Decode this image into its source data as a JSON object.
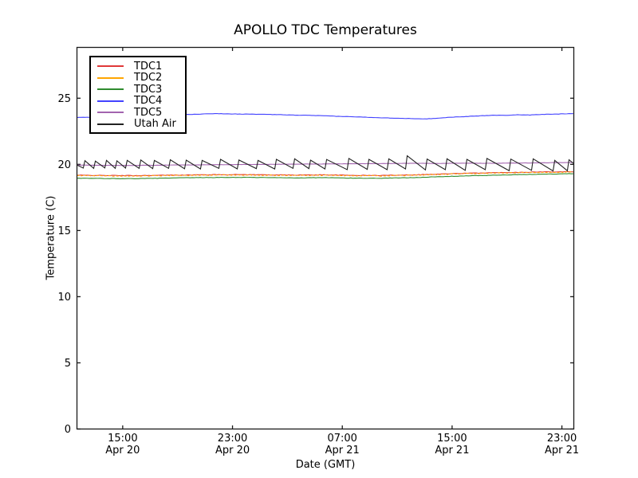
{
  "chart_data": {
    "type": "line",
    "title": "APOLLO TDC Temperatures",
    "xlabel": "Date (GMT)",
    "ylabel": "Temperature (C)",
    "grid": false,
    "legend_position": "upper left",
    "xlim_hours": [
      0,
      36.2
    ],
    "ylim": [
      0,
      28.84
    ],
    "y_ticks": [
      {
        "value": 0,
        "label": "0"
      },
      {
        "value": 5,
        "label": "5"
      },
      {
        "value": 10,
        "label": "10"
      },
      {
        "value": 15,
        "label": "15"
      },
      {
        "value": 20,
        "label": "20"
      },
      {
        "value": 25,
        "label": "25"
      }
    ],
    "x_ticks": [
      {
        "t": 3.333,
        "time": "15:00",
        "date": "Apr 20"
      },
      {
        "t": 11.333,
        "time": "23:00",
        "date": "Apr 20"
      },
      {
        "t": 19.333,
        "time": "07:00",
        "date": "Apr 21"
      },
      {
        "t": 27.333,
        "time": "15:00",
        "date": "Apr 21"
      },
      {
        "t": 35.333,
        "time": "23:00",
        "date": "Apr 21"
      }
    ],
    "series": [
      {
        "id": "tdc1",
        "label": "TDC1",
        "color": "#e03838",
        "noise": 0.02,
        "sample_step": 0.15,
        "points": [
          [
            0,
            19.18
          ],
          [
            2,
            19.16
          ],
          [
            4,
            19.15
          ],
          [
            6,
            19.17
          ],
          [
            8,
            19.2
          ],
          [
            10,
            19.22
          ],
          [
            12,
            19.23
          ],
          [
            14,
            19.21
          ],
          [
            16,
            19.19
          ],
          [
            18,
            19.21
          ],
          [
            20,
            19.17
          ],
          [
            22,
            19.16
          ],
          [
            24,
            19.2
          ],
          [
            26,
            19.25
          ],
          [
            28,
            19.32
          ],
          [
            30,
            19.36
          ],
          [
            32,
            19.4
          ],
          [
            34,
            19.43
          ],
          [
            36.2,
            19.45
          ]
        ]
      },
      {
        "id": "tdc2",
        "label": "TDC2",
        "color": "#ffa500",
        "noise": 0.03,
        "sample_step": 0.15,
        "dash": "3 2",
        "points": [
          [
            0,
            19.15
          ],
          [
            2,
            19.13
          ],
          [
            4,
            19.12
          ],
          [
            6,
            19.14
          ],
          [
            8,
            19.17
          ],
          [
            10,
            19.19
          ],
          [
            12,
            19.2
          ],
          [
            14,
            19.18
          ],
          [
            16,
            19.16
          ],
          [
            18,
            19.18
          ],
          [
            20,
            19.14
          ],
          [
            22,
            19.13
          ],
          [
            24,
            19.17
          ],
          [
            26,
            19.22
          ],
          [
            28,
            19.29
          ],
          [
            30,
            19.33
          ],
          [
            32,
            19.37
          ],
          [
            34,
            19.4
          ],
          [
            36.2,
            19.42
          ]
        ]
      },
      {
        "id": "tdc3",
        "label": "TDC3",
        "color": "#2e8b2e",
        "noise": 0.015,
        "sample_step": 0.15,
        "points": [
          [
            0,
            18.95
          ],
          [
            2,
            18.93
          ],
          [
            4,
            18.92
          ],
          [
            6,
            18.95
          ],
          [
            8,
            18.99
          ],
          [
            10,
            19.01
          ],
          [
            12,
            19.02
          ],
          [
            14,
            19.0
          ],
          [
            16,
            18.98
          ],
          [
            18,
            19.0
          ],
          [
            20,
            18.96
          ],
          [
            22,
            18.95
          ],
          [
            24,
            18.99
          ],
          [
            26,
            19.05
          ],
          [
            28,
            19.12
          ],
          [
            30,
            19.17
          ],
          [
            32,
            19.22
          ],
          [
            34,
            19.26
          ],
          [
            36.2,
            19.3
          ]
        ]
      },
      {
        "id": "tdc4",
        "label": "TDC4",
        "color": "#4242ff",
        "noise": 0.012,
        "sample_step": 0.15,
        "points": [
          [
            0,
            23.55
          ],
          [
            1,
            23.57
          ],
          [
            2,
            23.58
          ],
          [
            3,
            23.6
          ],
          [
            4,
            23.62
          ],
          [
            5,
            23.65
          ],
          [
            6,
            23.7
          ],
          [
            7,
            23.74
          ],
          [
            8,
            23.77
          ],
          [
            9,
            23.8
          ],
          [
            10,
            23.84
          ],
          [
            11,
            23.82
          ],
          [
            12,
            23.8
          ],
          [
            13,
            23.79
          ],
          [
            14,
            23.77
          ],
          [
            15,
            23.75
          ],
          [
            16,
            23.72
          ],
          [
            17,
            23.7
          ],
          [
            18,
            23.67
          ],
          [
            19,
            23.63
          ],
          [
            20,
            23.6
          ],
          [
            21,
            23.57
          ],
          [
            22,
            23.53
          ],
          [
            23,
            23.5
          ],
          [
            24,
            23.47
          ],
          [
            25,
            23.45
          ],
          [
            25.5,
            23.44
          ],
          [
            26,
            23.47
          ],
          [
            27,
            23.55
          ],
          [
            28,
            23.6
          ],
          [
            29,
            23.65
          ],
          [
            30,
            23.7
          ],
          [
            30.5,
            23.72
          ],
          [
            31,
            23.7
          ],
          [
            31.5,
            23.72
          ],
          [
            32,
            23.75
          ],
          [
            33,
            23.73
          ],
          [
            34,
            23.78
          ],
          [
            35,
            23.8
          ],
          [
            36.2,
            23.85
          ]
        ]
      },
      {
        "id": "tdc5",
        "label": "TDC5",
        "color": "#a263ae",
        "noise": 0.01,
        "sample_step": 0.15,
        "points": [
          [
            0,
            19.95
          ],
          [
            2,
            19.93
          ],
          [
            4,
            19.92
          ],
          [
            6,
            19.94
          ],
          [
            8,
            19.96
          ],
          [
            10,
            19.97
          ],
          [
            12,
            19.99
          ],
          [
            14,
            20.0
          ],
          [
            16,
            20.02
          ],
          [
            18,
            20.03
          ],
          [
            20,
            20.05
          ],
          [
            22,
            20.06
          ],
          [
            24,
            20.08
          ],
          [
            26,
            20.07
          ],
          [
            28,
            20.09
          ],
          [
            30,
            20.08
          ],
          [
            32,
            20.1
          ],
          [
            34,
            20.12
          ],
          [
            36.2,
            20.15
          ]
        ]
      },
      {
        "id": "utah-air",
        "label": "Utah Air",
        "color": "#222222",
        "noise": 0,
        "sample_step": 0,
        "points": [
          [
            0,
            19.95
          ],
          [
            0.46,
            19.72
          ],
          [
            0.58,
            20.28
          ],
          [
            1.22,
            19.7
          ],
          [
            1.34,
            20.25
          ],
          [
            2.03,
            19.73
          ],
          [
            2.15,
            20.3
          ],
          [
            2.79,
            19.7
          ],
          [
            2.91,
            20.27
          ],
          [
            3.54,
            19.72
          ],
          [
            3.66,
            20.3
          ],
          [
            4.53,
            19.7
          ],
          [
            4.65,
            20.33
          ],
          [
            5.52,
            19.68
          ],
          [
            5.64,
            20.3
          ],
          [
            6.68,
            19.7
          ],
          [
            6.8,
            20.35
          ],
          [
            7.84,
            19.67
          ],
          [
            7.96,
            20.32
          ],
          [
            9.0,
            19.65
          ],
          [
            9.12,
            20.3
          ],
          [
            10.34,
            19.7
          ],
          [
            10.46,
            20.38
          ],
          [
            11.68,
            19.66
          ],
          [
            11.8,
            20.33
          ],
          [
            13.07,
            19.68
          ],
          [
            13.19,
            20.3
          ],
          [
            14.41,
            19.65
          ],
          [
            14.53,
            20.38
          ],
          [
            15.74,
            19.7
          ],
          [
            15.86,
            20.42
          ],
          [
            16.9,
            19.68
          ],
          [
            17.02,
            20.32
          ],
          [
            18.07,
            19.65
          ],
          [
            18.19,
            20.37
          ],
          [
            19.69,
            19.6
          ],
          [
            19.81,
            20.45
          ],
          [
            21.15,
            19.62
          ],
          [
            21.27,
            20.38
          ],
          [
            22.6,
            19.6
          ],
          [
            22.72,
            20.42
          ],
          [
            23.94,
            19.65
          ],
          [
            24.06,
            20.65
          ],
          [
            25.39,
            19.58
          ],
          [
            25.51,
            20.4
          ],
          [
            26.84,
            19.6
          ],
          [
            26.96,
            20.42
          ],
          [
            28.29,
            19.55
          ],
          [
            28.41,
            20.38
          ],
          [
            29.75,
            19.6
          ],
          [
            29.87,
            20.45
          ],
          [
            31.49,
            19.52
          ],
          [
            31.61,
            20.4
          ],
          [
            33.12,
            19.55
          ],
          [
            33.24,
            20.42
          ],
          [
            34.69,
            19.5
          ],
          [
            34.81,
            20.3
          ],
          [
            35.73,
            19.52
          ],
          [
            35.85,
            20.35
          ],
          [
            36.2,
            20.05
          ]
        ]
      }
    ]
  }
}
